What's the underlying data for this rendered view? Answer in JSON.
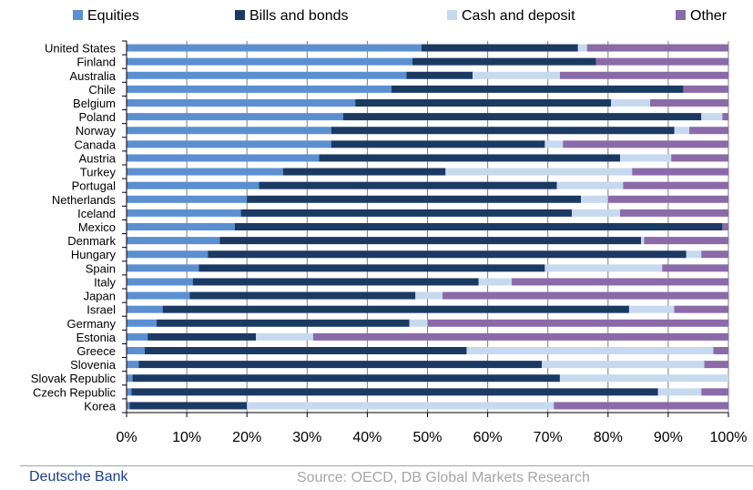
{
  "chart_data": {
    "type": "bar",
    "orientation": "horizontal",
    "stacked": true,
    "percent": true,
    "title": "",
    "xlabel": "",
    "ylabel": "",
    "xlim": [
      0,
      100
    ],
    "xticks": [
      "0%",
      "10%",
      "20%",
      "30%",
      "40%",
      "50%",
      "60%",
      "70%",
      "80%",
      "90%",
      "100%"
    ],
    "grid": "vertical",
    "legend_position": "top",
    "categories": [
      "United States",
      "Finland",
      "Australia",
      "Chile",
      "Belgium",
      "Poland",
      "Norway",
      "Canada",
      "Austria",
      "Turkey",
      "Portugal",
      "Netherlands",
      "Iceland",
      "Mexico",
      "Denmark",
      "Hungary",
      "Spain",
      "Italy",
      "Japan",
      "Israel",
      "Germany",
      "Estonia",
      "Greece",
      "Slovenia",
      "Slovak Republic",
      "Czech Republic",
      "Korea"
    ],
    "series": [
      {
        "name": "Equities",
        "color": "#5b8fd2",
        "values": [
          49,
          47.5,
          46.5,
          44,
          38,
          36,
          34,
          34,
          32,
          26,
          22,
          20,
          19,
          18,
          15.5,
          13.5,
          12,
          11,
          10.5,
          6,
          5,
          3.5,
          3,
          2,
          1,
          0.8,
          0.5
        ]
      },
      {
        "name": "Bills and bonds",
        "color": "#1b3a63",
        "values": [
          26,
          30.5,
          11,
          48.5,
          42.5,
          59.5,
          57,
          35.5,
          50,
          27,
          49.5,
          55.5,
          55,
          81,
          70,
          79.5,
          57.5,
          47.5,
          37.5,
          77.5,
          42,
          18,
          53.5,
          67,
          71,
          87.5,
          19.5
        ]
      },
      {
        "name": "Cash and deposit",
        "color": "#c7d9ef",
        "values": [
          1.5,
          0,
          14.5,
          0,
          6.5,
          3.5,
          2.5,
          3,
          8.5,
          31,
          11,
          4.5,
          8,
          0,
          0.5,
          2.5,
          19.5,
          5.5,
          4.5,
          7.5,
          3,
          9.5,
          41,
          27,
          28,
          7.2,
          51
        ]
      },
      {
        "name": "Other",
        "color": "#8a6aa8",
        "values": [
          23.5,
          22,
          28,
          7.5,
          13,
          1,
          6.5,
          27.5,
          9.5,
          16,
          17.5,
          20,
          18,
          1,
          14,
          4.5,
          11,
          36,
          47.5,
          9,
          50,
          69,
          2.5,
          4,
          0,
          4.5,
          29
        ]
      }
    ]
  },
  "footer": {
    "brand": "Deutsche Bank",
    "source": "Source: OECD, DB Global Markets Research"
  }
}
